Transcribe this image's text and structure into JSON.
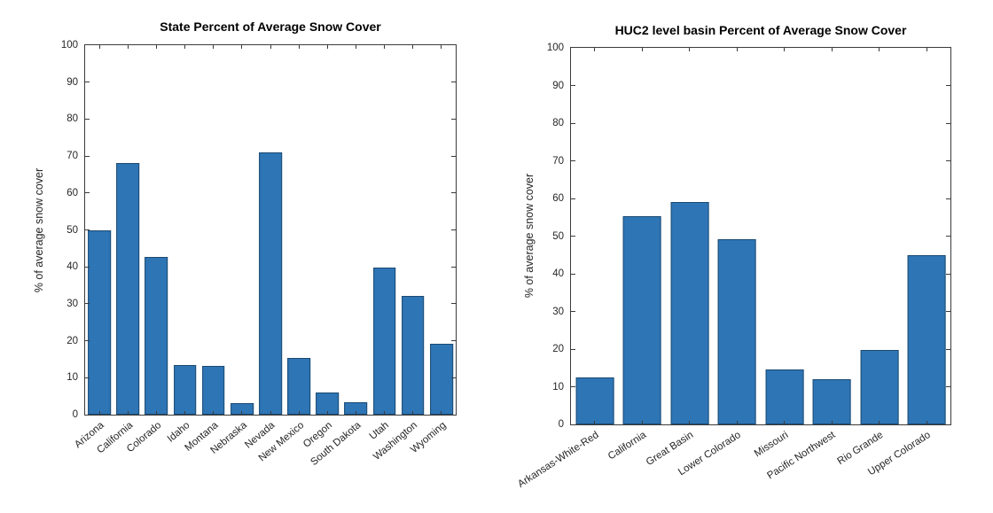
{
  "page": {
    "background_color": "#ffffff"
  },
  "chart_data": [
    {
      "type": "bar",
      "title": "State Percent of Average Snow Cover",
      "xlabel": "",
      "ylabel": "% of average snow cover",
      "ylim": [
        0,
        100
      ],
      "yticks": [
        0,
        10,
        20,
        30,
        40,
        50,
        60,
        70,
        80,
        90,
        100
      ],
      "grid": false,
      "legend": "none",
      "bar_face_color": "#2e75b5",
      "bar_edge_color": "#1a4971",
      "categories": [
        "Arizona",
        "California",
        "Colorado",
        "Idaho",
        "Montana",
        "Nebraska",
        "Nevada",
        "New Mexico",
        "Oregon",
        "South Dakota",
        "Utah",
        "Washington",
        "Wyoming"
      ],
      "values": [
        50,
        68,
        42.6,
        13.4,
        13.1,
        3.1,
        71,
        15.4,
        6.1,
        3.3,
        39.9,
        32.1,
        19.3
      ]
    },
    {
      "type": "bar",
      "title": "HUC2 level basin Percent of Average Snow Cover",
      "xlabel": "",
      "ylabel": "% of average snow cover",
      "ylim": [
        0,
        100
      ],
      "yticks": [
        0,
        10,
        20,
        30,
        40,
        50,
        60,
        70,
        80,
        90,
        100
      ],
      "grid": false,
      "legend": "none",
      "bar_face_color": "#2e75b5",
      "bar_edge_color": "#1a4971",
      "categories": [
        "Arkansas-White-Red",
        "California",
        "Great Basin",
        "Lower Colorado",
        "Missouri",
        "Pacific Northwest",
        "Rio Grande",
        "Upper Colorado"
      ],
      "values": [
        12.4,
        55.2,
        59,
        49.1,
        14.6,
        12.1,
        19.7,
        44.9
      ]
    }
  ]
}
